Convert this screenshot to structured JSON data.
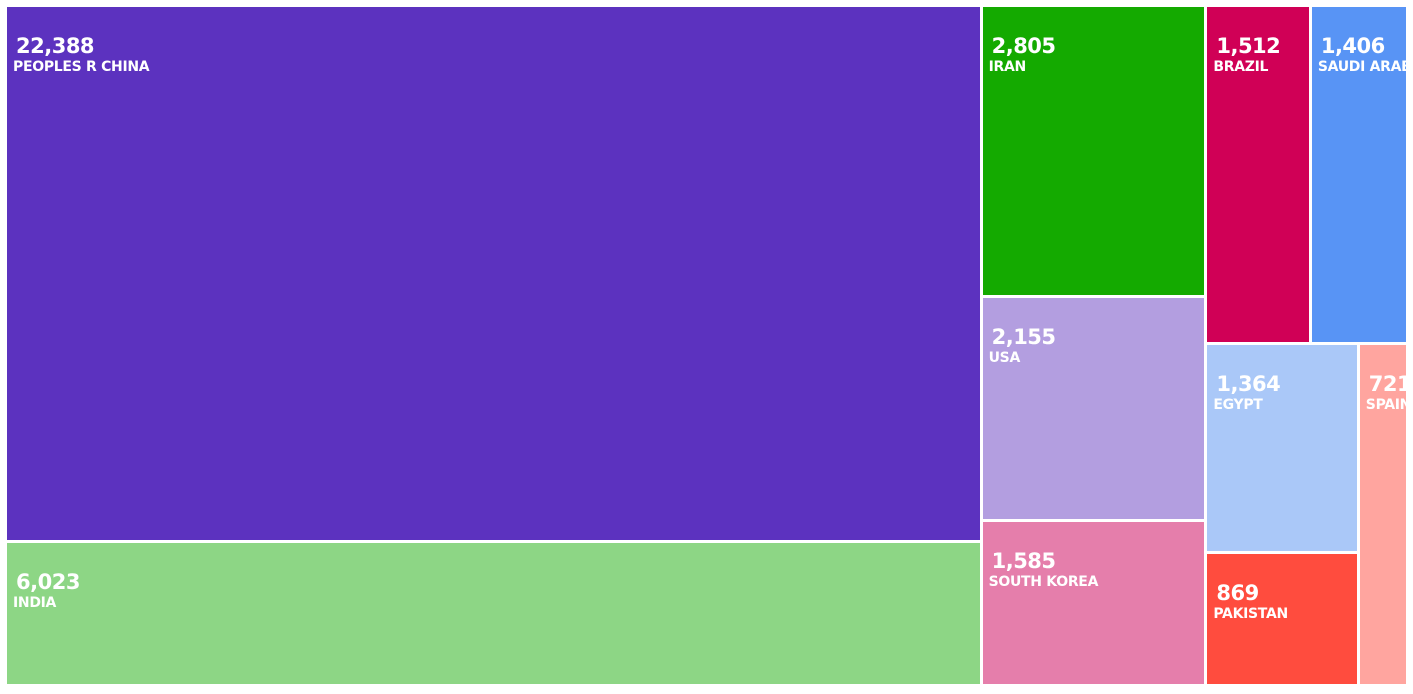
{
  "chart_data": {
    "type": "treemap",
    "items": [
      {
        "label": "PEOPLES R CHINA",
        "value": 22388,
        "value_text": "22,388",
        "color": "#5c32bf"
      },
      {
        "label": "INDIA",
        "value": 6023,
        "value_text": "6,023",
        "color": "#8dd685"
      },
      {
        "label": "IRAN",
        "value": 2805,
        "value_text": "2,805",
        "color": "#14aa00"
      },
      {
        "label": "USA",
        "value": 2155,
        "value_text": "2,155",
        "color": "#b39ee0"
      },
      {
        "label": "SOUTH KOREA",
        "value": 1585,
        "value_text": "1,585",
        "color": "#e57eab"
      },
      {
        "label": "BRAZIL",
        "value": 1512,
        "value_text": "1,512",
        "color": "#d00056"
      },
      {
        "label": "SAUDI ARABIA",
        "value": 1406,
        "value_text": "1,406",
        "color": "#5894f5"
      },
      {
        "label": "EGYPT",
        "value": 1364,
        "value_text": "1,364",
        "color": "#aac8f8"
      },
      {
        "label": "PAKISTAN",
        "value": 869,
        "value_text": "869",
        "color": "#ff4c3e"
      },
      {
        "label": "SPAIN",
        "value": 721,
        "value_text": "721",
        "color": "#ffa59f"
      }
    ]
  }
}
